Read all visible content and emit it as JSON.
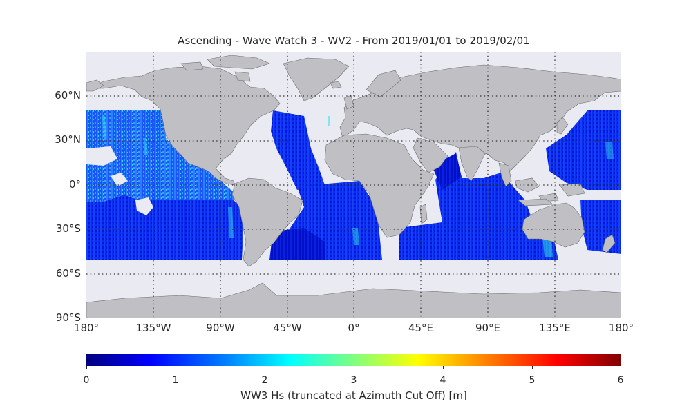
{
  "title": "Ascending - Wave Watch 3 - WV2 - From 2019/01/01 to 2019/02/01",
  "map": {
    "projection": "equirectangular",
    "ocean_color": "#eaeaf2",
    "land_color": "#bfbfc4",
    "coast_color": "#666666",
    "grid": true,
    "lat_ticks": [
      "60°N",
      "30°N",
      "0°",
      "30°S",
      "60°S",
      "90°S"
    ],
    "lon_ticks": [
      "180°",
      "135°W",
      "90°W",
      "45°W",
      "0°",
      "45°E",
      "90°E",
      "135°E",
      "180°"
    ],
    "data_lat_range": [
      -50,
      50
    ],
    "observed_region_names": [
      "north-pacific",
      "south-pacific",
      "north-atlantic",
      "south-atlantic",
      "indian-ocean",
      "western-pacific"
    ]
  },
  "colorbar": {
    "label": "WW3 Hs (truncated at Azimuth Cut Off) [m]",
    "ticks": [
      "0",
      "1",
      "2",
      "3",
      "4",
      "5",
      "6"
    ],
    "range": [
      0,
      6
    ],
    "colormap": "jet"
  }
}
